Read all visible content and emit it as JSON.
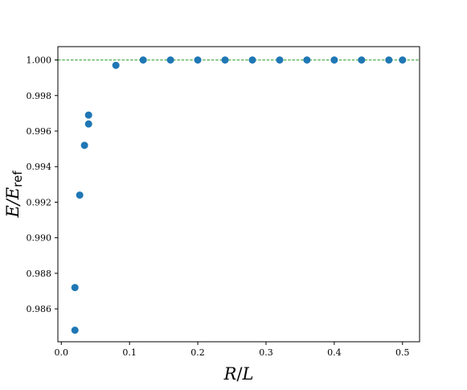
{
  "chart_data": {
    "type": "scatter",
    "title": "",
    "xlabel": {
      "text": "R/L",
      "parts": [
        "R",
        "/",
        "L"
      ]
    },
    "ylabel": {
      "text": "E/E_ref",
      "main": "E/E",
      "subscript": "ref"
    },
    "xlim": [
      -0.005,
      0.525
    ],
    "ylim": [
      0.98415,
      1.00075
    ],
    "xticks": [
      0.0,
      0.1,
      0.2,
      0.3,
      0.4,
      0.5
    ],
    "xtick_labels": [
      "0.0",
      "0.1",
      "0.2",
      "0.3",
      "0.4",
      "0.5"
    ],
    "yticks": [
      0.986,
      0.988,
      0.99,
      0.992,
      0.994,
      0.996,
      0.998,
      1.0
    ],
    "ytick_labels": [
      "0.986",
      "0.988",
      "0.990",
      "0.992",
      "0.994",
      "0.996",
      "0.998",
      "1.000"
    ],
    "grid": false,
    "legend": "none",
    "reference_line": {
      "y": 1.0,
      "style": "dashed",
      "color": "#2ca02c"
    },
    "marker_color": "#1f77b4",
    "series": [
      {
        "x": [
          0.02,
          0.02,
          0.027,
          0.034,
          0.04,
          0.04,
          0.08,
          0.12,
          0.16,
          0.2,
          0.24,
          0.28,
          0.32,
          0.36,
          0.4,
          0.44,
          0.48,
          0.5
        ],
        "y": [
          0.9848,
          0.9872,
          0.9924,
          0.9952,
          0.9964,
          0.9969,
          0.9997,
          1.0,
          1.0,
          1.0,
          1.0,
          1.0,
          1.0,
          1.0,
          1.0,
          1.0,
          1.0,
          1.0
        ]
      }
    ]
  }
}
